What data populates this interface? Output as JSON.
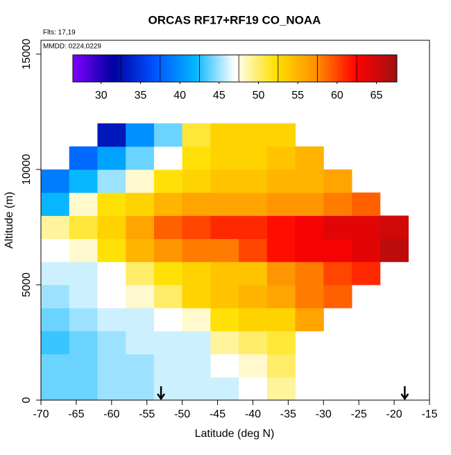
{
  "chart_data": {
    "type": "heatmap",
    "title": "ORCAS RF17+RF19 CO_NOAA",
    "annotations": [
      "Flts: 17,19",
      "MMDD: 0224,0229"
    ],
    "x_label": "Latitude (deg N)",
    "y_label": "Altitude (m)",
    "xlim": [
      -70,
      -15
    ],
    "xticks": [
      -70,
      -65,
      -60,
      -55,
      -50,
      -45,
      -40,
      -35,
      -30,
      -25,
      -20,
      -15
    ],
    "ylim": [
      0,
      15600
    ],
    "yticks": [
      0,
      5000,
      10000,
      15000
    ],
    "x": [
      -68,
      -64,
      -60,
      -56,
      -52,
      -48,
      -44,
      -40,
      -36,
      -32,
      -28,
      -24,
      -20
    ],
    "y": [
      500,
      1500,
      2500,
      3500,
      4500,
      5500,
      6500,
      7500,
      8500,
      9500,
      10500,
      11500
    ],
    "z": [
      [
        44,
        44,
        45,
        45,
        46,
        46,
        46,
        47,
        49,
        null,
        null,
        null,
        null
      ],
      [
        44,
        44,
        45,
        45,
        46,
        46,
        47,
        48,
        50,
        null,
        null,
        null,
        null
      ],
      [
        43,
        44,
        45,
        46,
        46,
        46,
        49,
        50,
        51,
        null,
        null,
        null,
        null
      ],
      [
        44,
        45,
        46,
        46,
        47,
        48,
        52,
        53,
        53,
        56,
        null,
        null,
        null
      ],
      [
        45,
        46,
        47,
        48,
        50,
        53,
        54,
        55,
        56,
        58,
        59,
        null,
        null
      ],
      [
        46,
        46,
        47,
        50,
        52,
        53,
        54,
        54,
        57,
        58,
        60,
        61,
        null
      ],
      [
        47,
        48,
        52,
        55,
        57,
        58,
        58,
        60,
        62,
        63,
        63,
        64,
        66
      ],
      [
        49,
        51,
        53,
        56,
        59,
        60,
        61,
        61,
        62,
        63,
        64,
        64,
        65
      ],
      [
        42,
        48,
        52,
        53,
        55,
        56,
        56,
        56,
        57,
        57,
        58,
        59,
        null
      ],
      [
        39,
        42,
        45,
        48,
        52,
        53,
        54,
        54,
        55,
        55,
        56,
        null,
        null
      ],
      [
        null,
        38,
        41,
        44,
        47,
        52,
        53,
        53,
        54,
        55,
        null,
        null,
        null
      ],
      [
        null,
        null,
        33,
        40,
        44,
        51,
        53,
        53,
        53,
        null,
        null,
        null,
        null
      ]
    ],
    "clim": [
      26.4,
      67.6
    ],
    "cticks": [
      30,
      35,
      40,
      45,
      50,
      55,
      60,
      65
    ],
    "colors": [
      "#8000ff",
      "#0000a0",
      "#0050ff",
      "#00b4ff",
      "#ffffff",
      "#ffe000",
      "#ff9000",
      "#ff0000",
      "#a01010"
    ],
    "markers_x": [
      -53,
      -18.5
    ]
  }
}
